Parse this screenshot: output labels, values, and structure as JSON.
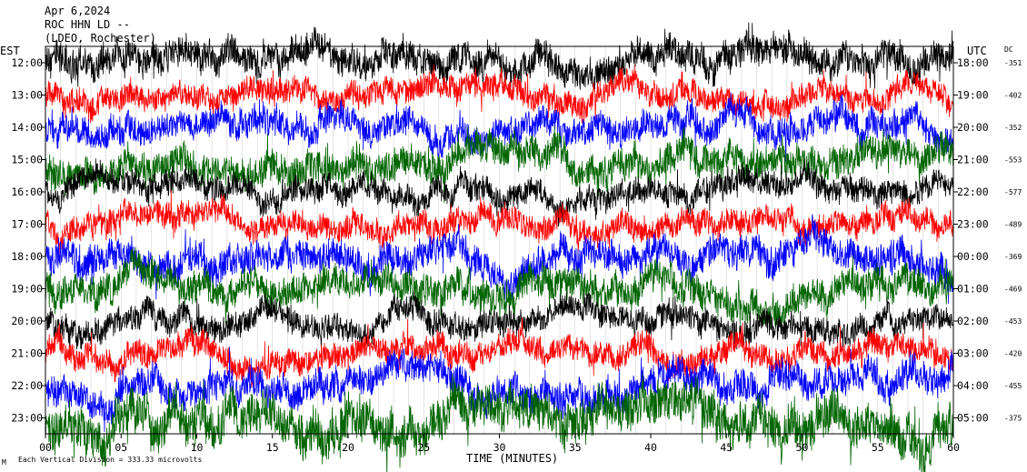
{
  "header": {
    "date": "Apr 6,2024",
    "station": "ROC HHN LD --",
    "network": "(LDEO, Rochester)"
  },
  "left_axis_label": "EST",
  "right_axis_label": "UTC",
  "dc_label": "DC",
  "xlabel": "TIME (MINUTES)",
  "footer_note": "Each Vertical Division =  333.33 microvolts",
  "corner_mark": "M",
  "colors": {
    "black": "#000000",
    "red": "#ff0000",
    "blue": "#0000ff",
    "green": "#006400"
  },
  "chart_data": {
    "type": "line",
    "title": "",
    "xlabel": "TIME (MINUTES)",
    "ylabel": "EST",
    "xlim": [
      0,
      60
    ],
    "x_ticks": [
      "00",
      "05",
      "10",
      "15",
      "20",
      "25",
      "30",
      "35",
      "40",
      "45",
      "50",
      "55",
      "60"
    ],
    "grid": true,
    "series": [
      {
        "est": "12:00",
        "utc": "18:00",
        "dc": "-351",
        "color": "#000000",
        "amplitude": 0.55
      },
      {
        "est": "13:00",
        "utc": "19:00",
        "dc": "-402",
        "color": "#ff0000",
        "amplitude": 0.45
      },
      {
        "est": "14:00",
        "utc": "20:00",
        "dc": "-352",
        "color": "#0000ff",
        "amplitude": 0.5
      },
      {
        "est": "15:00",
        "utc": "21:00",
        "dc": "-553",
        "color": "#006400",
        "amplitude": 0.55
      },
      {
        "est": "16:00",
        "utc": "22:00",
        "dc": "-577",
        "color": "#000000",
        "amplitude": 0.45
      },
      {
        "est": "17:00",
        "utc": "23:00",
        "dc": "-489",
        "color": "#ff0000",
        "amplitude": 0.45
      },
      {
        "est": "18:00",
        "utc": "00:00",
        "dc": "-369",
        "color": "#0000ff",
        "amplitude": 0.55
      },
      {
        "est": "19:00",
        "utc": "01:00",
        "dc": "-469",
        "color": "#006400",
        "amplitude": 0.55
      },
      {
        "est": "20:00",
        "utc": "02:00",
        "dc": "-453",
        "color": "#000000",
        "amplitude": 0.45
      },
      {
        "est": "21:00",
        "utc": "03:00",
        "dc": "-420",
        "color": "#ff0000",
        "amplitude": 0.45
      },
      {
        "est": "22:00",
        "utc": "04:00",
        "dc": "-455",
        "color": "#0000ff",
        "amplitude": 0.55
      },
      {
        "est": "23:00",
        "utc": "05:00",
        "dc": "-375",
        "color": "#006400",
        "amplitude": 0.75
      }
    ]
  }
}
